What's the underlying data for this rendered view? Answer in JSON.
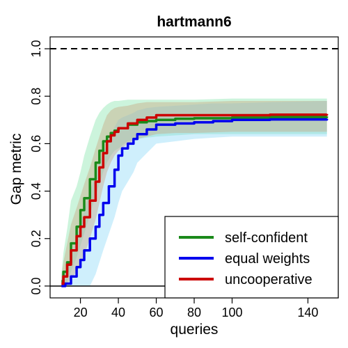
{
  "chart_data": {
    "type": "line",
    "title": "hartmann6",
    "xlabel": "queries",
    "ylabel": "Gap metric",
    "xlim": [
      4,
      156
    ],
    "ylim": [
      -0.05,
      1.05
    ],
    "x_ticks": [
      20,
      40,
      60,
      80,
      100,
      140
    ],
    "y_ticks": [
      0.0,
      0.2,
      0.4,
      0.6,
      0.8,
      1.0
    ],
    "x_tick_labels": [
      "20",
      "40",
      "60",
      "80",
      "100",
      "140"
    ],
    "y_tick_labels": [
      "0.0",
      "0.2",
      "0.4",
      "0.6",
      "0.8",
      "1.0"
    ],
    "reference_lines": [
      {
        "y": 1.0,
        "style": "dashed"
      },
      {
        "y": 0.0,
        "style": "solid"
      }
    ],
    "legend_position": "bottom-right",
    "series": [
      {
        "name": "self-confident",
        "color": "#1a8a1a",
        "band_color": "#7fe3a8",
        "x": [
          10,
          11,
          13,
          15,
          18,
          20,
          22,
          25,
          28,
          30,
          32,
          34,
          36,
          38,
          40,
          45,
          50,
          55,
          60,
          70,
          80,
          100,
          120,
          150
        ],
        "y": [
          0.02,
          0.06,
          0.1,
          0.18,
          0.25,
          0.32,
          0.37,
          0.45,
          0.52,
          0.57,
          0.61,
          0.63,
          0.645,
          0.655,
          0.665,
          0.68,
          0.69,
          0.695,
          0.7,
          0.705,
          0.707,
          0.71,
          0.712,
          0.715
        ],
        "lower": [
          0.0,
          0.0,
          0.02,
          0.06,
          0.12,
          0.17,
          0.22,
          0.3,
          0.38,
          0.43,
          0.48,
          0.52,
          0.55,
          0.57,
          0.58,
          0.61,
          0.62,
          0.625,
          0.63,
          0.635,
          0.64,
          0.64,
          0.64,
          0.64
        ],
        "upper": [
          0.05,
          0.14,
          0.24,
          0.36,
          0.42,
          0.48,
          0.55,
          0.63,
          0.7,
          0.73,
          0.75,
          0.765,
          0.775,
          0.78,
          0.78,
          0.785,
          0.785,
          0.785,
          0.785,
          0.785,
          0.785,
          0.79,
          0.79,
          0.79
        ]
      },
      {
        "name": "equal weights",
        "color": "#0000ee",
        "band_color": "#87d7f7",
        "x": [
          10,
          12,
          15,
          18,
          20,
          22,
          25,
          28,
          30,
          32,
          35,
          38,
          40,
          42,
          45,
          48,
          50,
          55,
          60,
          70,
          80,
          90,
          100,
          120,
          150
        ],
        "y": [
          0.0,
          0.01,
          0.04,
          0.08,
          0.11,
          0.15,
          0.2,
          0.25,
          0.3,
          0.35,
          0.42,
          0.49,
          0.55,
          0.58,
          0.6,
          0.62,
          0.64,
          0.66,
          0.68,
          0.685,
          0.69,
          0.695,
          0.7,
          0.702,
          0.705
        ],
        "lower": [
          0.0,
          0.0,
          0.0,
          0.0,
          0.0,
          0.0,
          0.0,
          0.05,
          0.1,
          0.15,
          0.22,
          0.29,
          0.35,
          0.4,
          0.44,
          0.48,
          0.52,
          0.56,
          0.6,
          0.61,
          0.62,
          0.625,
          0.63,
          0.63,
          0.63
        ],
        "upper": [
          0.03,
          0.06,
          0.12,
          0.2,
          0.26,
          0.32,
          0.4,
          0.47,
          0.52,
          0.56,
          0.62,
          0.67,
          0.7,
          0.71,
          0.72,
          0.73,
          0.74,
          0.75,
          0.755,
          0.76,
          0.765,
          0.77,
          0.77,
          0.775,
          0.78
        ]
      },
      {
        "name": "uncooperative",
        "color": "#cc0000",
        "band_color": "#c9a27a",
        "x": [
          10,
          11,
          13,
          15,
          18,
          20,
          22,
          25,
          28,
          30,
          32,
          34,
          36,
          38,
          40,
          45,
          50,
          55,
          60,
          70,
          80,
          100,
          120,
          150
        ],
        "y": [
          0.01,
          0.04,
          0.09,
          0.15,
          0.21,
          0.25,
          0.29,
          0.36,
          0.44,
          0.5,
          0.56,
          0.61,
          0.635,
          0.65,
          0.665,
          0.685,
          0.7,
          0.71,
          0.72,
          0.72,
          0.72,
          0.72,
          0.722,
          0.725
        ],
        "lower": [
          0.0,
          0.0,
          0.01,
          0.03,
          0.06,
          0.09,
          0.13,
          0.2,
          0.28,
          0.35,
          0.42,
          0.48,
          0.52,
          0.55,
          0.57,
          0.6,
          0.62,
          0.63,
          0.64,
          0.645,
          0.645,
          0.65,
          0.65,
          0.65
        ],
        "upper": [
          0.04,
          0.1,
          0.18,
          0.26,
          0.33,
          0.38,
          0.43,
          0.5,
          0.58,
          0.63,
          0.68,
          0.72,
          0.74,
          0.75,
          0.755,
          0.76,
          0.77,
          0.775,
          0.775,
          0.775,
          0.775,
          0.78,
          0.78,
          0.78
        ]
      }
    ]
  }
}
